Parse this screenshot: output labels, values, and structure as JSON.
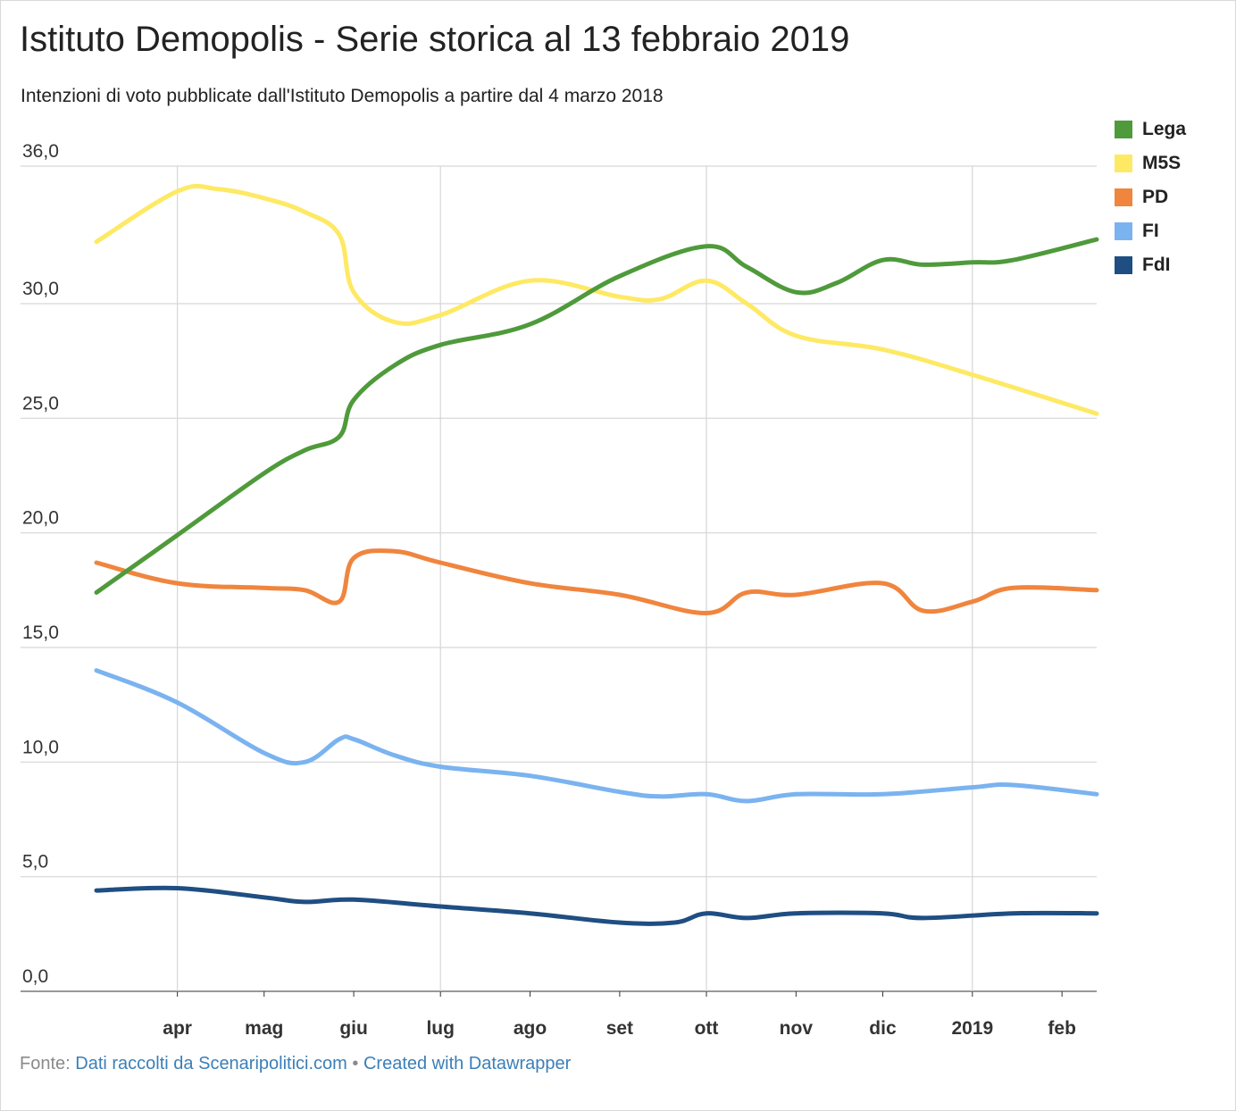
{
  "title": "Istituto Demopolis - Serie storica al 13 febbraio 2019",
  "subtitle": "Intenzioni di voto pubblicate dall'Istituto Demopolis a partire dal 4 marzo 2018",
  "footer": {
    "source_prefix": "Fonte:",
    "source_link": "Dati raccolti da Scenaripolitici.com",
    "separator": "•",
    "credit_link": "Created with Datawrapper"
  },
  "chart_data": {
    "type": "line",
    "title": "Istituto Demopolis - Serie storica al 13 febbraio 2019",
    "subtitle": "Intenzioni di voto pubblicate dall'Istituto Demopolis a partire dal 4 marzo 2018",
    "xlabel": "",
    "ylabel": "",
    "xlim": [
      "2018-03-04",
      "2019-02-13"
    ],
    "ylim": [
      0,
      36
    ],
    "y_ticks": [
      {
        "value": 0,
        "label": "0,0"
      },
      {
        "value": 5,
        "label": "5,0"
      },
      {
        "value": 10,
        "label": "10,0"
      },
      {
        "value": 15,
        "label": "15,0"
      },
      {
        "value": 20,
        "label": "20,0"
      },
      {
        "value": 25,
        "label": "25,0"
      },
      {
        "value": 30,
        "label": "30,0"
      },
      {
        "value": 36,
        "label": "36,0"
      }
    ],
    "x_ticks": [
      {
        "date": "2018-04-01",
        "label": "apr"
      },
      {
        "date": "2018-05-01",
        "label": "mag"
      },
      {
        "date": "2018-06-01",
        "label": "giu"
      },
      {
        "date": "2018-07-01",
        "label": "lug"
      },
      {
        "date": "2018-08-01",
        "label": "ago"
      },
      {
        "date": "2018-09-01",
        "label": "set"
      },
      {
        "date": "2018-10-01",
        "label": "ott"
      },
      {
        "date": "2018-11-01",
        "label": "nov"
      },
      {
        "date": "2018-12-01",
        "label": "dic"
      },
      {
        "date": "2019-01-01",
        "label": "2019"
      },
      {
        "date": "2019-02-01",
        "label": "feb"
      }
    ],
    "vertical_gridlines": [
      "2018-04-01",
      "2018-07-01",
      "2018-10-01",
      "2019-01-01"
    ],
    "horizontal_gridlines": true,
    "legend_position": "top-right",
    "series": [
      {
        "name": "Lega",
        "color": "#4f9a3b",
        "points": [
          [
            "2018-03-04",
            17.4
          ],
          [
            "2018-04-01",
            19.9
          ],
          [
            "2018-05-01",
            22.6
          ],
          [
            "2018-05-15",
            23.6
          ],
          [
            "2018-05-27",
            24.2
          ],
          [
            "2018-06-01",
            25.8
          ],
          [
            "2018-06-15",
            27.3
          ],
          [
            "2018-07-01",
            28.2
          ],
          [
            "2018-08-01",
            29.1
          ],
          [
            "2018-09-01",
            31.2
          ],
          [
            "2018-10-01",
            32.5
          ],
          [
            "2018-10-15",
            31.6
          ],
          [
            "2018-11-01",
            30.5
          ],
          [
            "2018-11-15",
            30.9
          ],
          [
            "2018-12-01",
            31.9
          ],
          [
            "2018-12-15",
            31.7
          ],
          [
            "2019-01-01",
            31.8
          ],
          [
            "2019-01-15",
            31.9
          ],
          [
            "2019-02-13",
            32.8
          ]
        ]
      },
      {
        "name": "M5S",
        "color": "#fee964",
        "points": [
          [
            "2018-03-04",
            32.7
          ],
          [
            "2018-04-01",
            34.9
          ],
          [
            "2018-04-15",
            35.0
          ],
          [
            "2018-05-01",
            34.6
          ],
          [
            "2018-05-15",
            34.0
          ],
          [
            "2018-05-27",
            33.0
          ],
          [
            "2018-06-01",
            30.5
          ],
          [
            "2018-06-15",
            29.2
          ],
          [
            "2018-07-01",
            29.5
          ],
          [
            "2018-08-01",
            31.0
          ],
          [
            "2018-09-01",
            30.3
          ],
          [
            "2018-09-15",
            30.2
          ],
          [
            "2018-10-01",
            31.0
          ],
          [
            "2018-10-15",
            30.0
          ],
          [
            "2018-11-01",
            28.6
          ],
          [
            "2018-12-01",
            28.0
          ],
          [
            "2019-01-01",
            26.9
          ],
          [
            "2019-02-13",
            25.2
          ]
        ]
      },
      {
        "name": "PD",
        "color": "#f0853e",
        "points": [
          [
            "2018-03-04",
            18.7
          ],
          [
            "2018-04-01",
            17.8
          ],
          [
            "2018-05-01",
            17.6
          ],
          [
            "2018-05-15",
            17.5
          ],
          [
            "2018-05-27",
            17.0
          ],
          [
            "2018-06-01",
            18.9
          ],
          [
            "2018-06-15",
            19.2
          ],
          [
            "2018-07-01",
            18.7
          ],
          [
            "2018-08-01",
            17.8
          ],
          [
            "2018-09-01",
            17.3
          ],
          [
            "2018-10-01",
            16.5
          ],
          [
            "2018-10-15",
            17.4
          ],
          [
            "2018-11-01",
            17.3
          ],
          [
            "2018-12-01",
            17.8
          ],
          [
            "2018-12-15",
            16.6
          ],
          [
            "2019-01-01",
            17.0
          ],
          [
            "2019-01-15",
            17.6
          ],
          [
            "2019-02-13",
            17.5
          ]
        ]
      },
      {
        "name": "FI",
        "color": "#7ab3f0",
        "points": [
          [
            "2018-03-04",
            14.0
          ],
          [
            "2018-04-01",
            12.6
          ],
          [
            "2018-05-01",
            10.4
          ],
          [
            "2018-05-15",
            10.0
          ],
          [
            "2018-05-27",
            11.0
          ],
          [
            "2018-06-01",
            11.0
          ],
          [
            "2018-06-15",
            10.3
          ],
          [
            "2018-07-01",
            9.8
          ],
          [
            "2018-08-01",
            9.4
          ],
          [
            "2018-09-01",
            8.7
          ],
          [
            "2018-09-15",
            8.5
          ],
          [
            "2018-10-01",
            8.6
          ],
          [
            "2018-10-15",
            8.3
          ],
          [
            "2018-11-01",
            8.6
          ],
          [
            "2018-12-01",
            8.6
          ],
          [
            "2019-01-01",
            8.9
          ],
          [
            "2019-01-15",
            9.0
          ],
          [
            "2019-02-13",
            8.6
          ]
        ]
      },
      {
        "name": "FdI",
        "color": "#1f4e82",
        "points": [
          [
            "2018-03-04",
            4.4
          ],
          [
            "2018-04-01",
            4.5
          ],
          [
            "2018-05-01",
            4.1
          ],
          [
            "2018-05-15",
            3.9
          ],
          [
            "2018-06-01",
            4.0
          ],
          [
            "2018-07-01",
            3.7
          ],
          [
            "2018-08-01",
            3.4
          ],
          [
            "2018-09-01",
            3.0
          ],
          [
            "2018-09-20",
            3.0
          ],
          [
            "2018-10-01",
            3.4
          ],
          [
            "2018-10-15",
            3.2
          ],
          [
            "2018-11-01",
            3.4
          ],
          [
            "2018-12-01",
            3.4
          ],
          [
            "2018-12-15",
            3.2
          ],
          [
            "2019-01-15",
            3.4
          ],
          [
            "2019-02-13",
            3.4
          ]
        ]
      }
    ]
  }
}
